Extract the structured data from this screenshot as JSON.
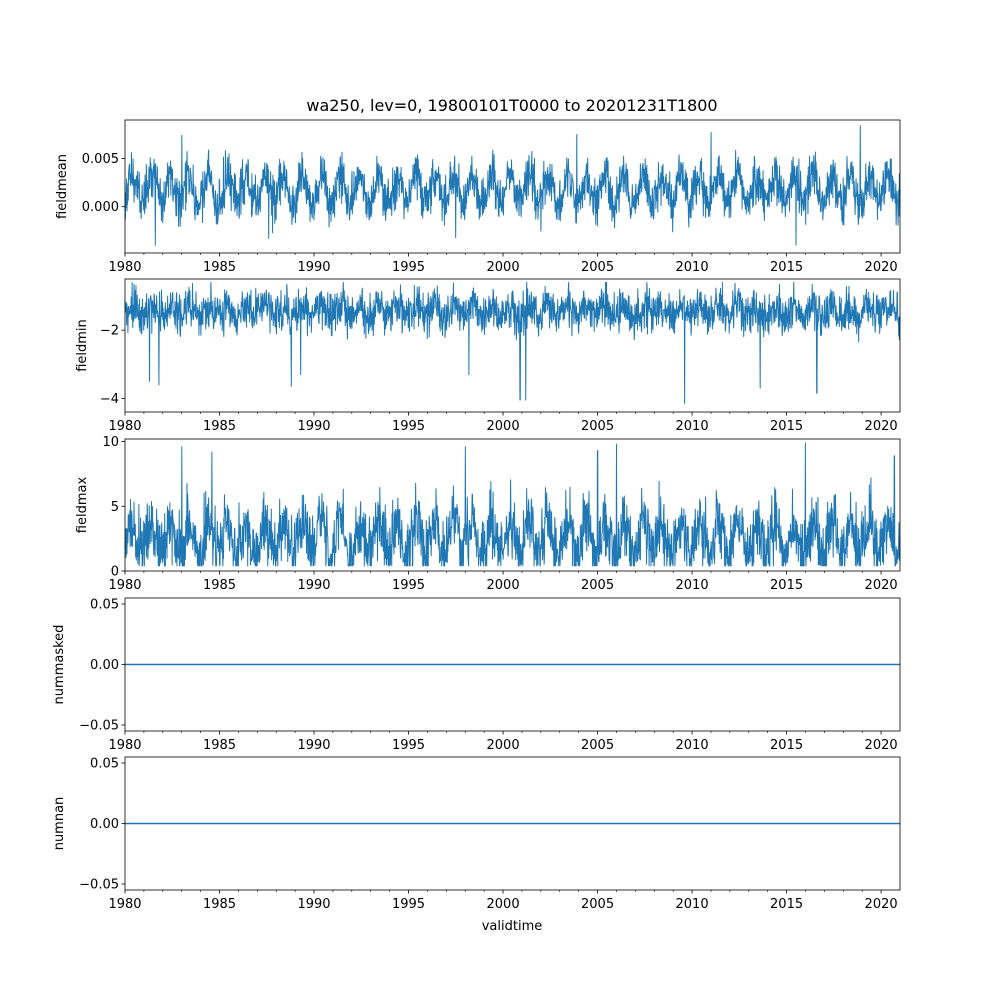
{
  "figure": {
    "title": "wa250, lev=0, 19800101T0000 to 20201231T1800",
    "xlabel": "validtime",
    "series_color": "#1f77b4"
  },
  "chart_data": [
    {
      "type": "line",
      "ylabel": "fieldmean",
      "x_range": [
        1980,
        2021
      ],
      "x_ticks": [
        1980,
        1985,
        1990,
        1995,
        2000,
        2005,
        2010,
        2015,
        2020
      ],
      "ylim": [
        -0.0048,
        0.009
      ],
      "y_ticks": [
        0.0,
        0.005
      ],
      "y_tick_labels": [
        "0.000",
        "0.005"
      ],
      "signal": {
        "mean": 0.0018,
        "seasonal_amplitude": 0.0015,
        "noise": 0.0012,
        "low": -0.004,
        "high": 0.0084
      },
      "extremes": [
        [
          1981.6,
          -0.004
        ],
        [
          1987.6,
          -0.0033
        ],
        [
          1997.5,
          -0.0032
        ],
        [
          2015.5,
          -0.0042
        ],
        [
          2018.9,
          0.0084
        ],
        [
          2003.9,
          0.0075
        ],
        [
          1983.0,
          0.0074
        ],
        [
          2011.0,
          0.0077
        ]
      ],
      "grid": false,
      "legend": "none"
    },
    {
      "type": "line",
      "ylabel": "fieldmin",
      "x_range": [
        1980,
        2021
      ],
      "x_ticks": [
        1980,
        1985,
        1990,
        1995,
        2000,
        2005,
        2010,
        2015,
        2020
      ],
      "ylim": [
        -4.4,
        -0.5
      ],
      "y_ticks": [
        -4,
        -2
      ],
      "y_tick_labels": [
        "−4",
        "−2"
      ],
      "signal": {
        "mean": -1.45,
        "seasonal_amplitude": 0.15,
        "noise": 0.3,
        "low": -4.15,
        "high": -0.6
      },
      "extremes": [
        [
          1981.3,
          -3.5
        ],
        [
          1981.8,
          -3.6
        ],
        [
          1988.8,
          -3.65
        ],
        [
          1989.3,
          -3.3
        ],
        [
          2000.9,
          -4.05
        ],
        [
          2001.2,
          -4.05
        ],
        [
          2009.6,
          -4.15
        ],
        [
          2016.6,
          -3.85
        ],
        [
          2013.6,
          -3.7
        ],
        [
          1998.2,
          -3.3
        ]
      ],
      "grid": false,
      "legend": "none"
    },
    {
      "type": "line",
      "ylabel": "fieldmax",
      "x_range": [
        1980,
        2021
      ],
      "x_ticks": [
        1980,
        1985,
        1990,
        1995,
        2000,
        2005,
        2010,
        2015,
        2020
      ],
      "ylim": [
        0.0,
        10.2
      ],
      "y_ticks": [
        0,
        5,
        10
      ],
      "y_tick_labels": [
        "0",
        "5",
        "10"
      ],
      "signal": {
        "mean": 2.6,
        "seasonal_amplitude": 1.2,
        "noise": 1.3,
        "low": 0.4,
        "high": 9.9
      },
      "extremes": [
        [
          1983.0,
          9.6
        ],
        [
          1984.6,
          9.2
        ],
        [
          1998.0,
          9.6
        ],
        [
          2006.0,
          9.8
        ],
        [
          2016.0,
          9.9
        ],
        [
          2005.0,
          9.3
        ],
        [
          2020.7,
          8.9
        ]
      ],
      "grid": false,
      "legend": "none"
    },
    {
      "type": "line",
      "ylabel": "nummasked",
      "x_range": [
        1980,
        2021
      ],
      "x_ticks": [
        1980,
        1985,
        1990,
        1995,
        2000,
        2005,
        2010,
        2015,
        2020
      ],
      "ylim": [
        -0.055,
        0.055
      ],
      "y_ticks": [
        -0.05,
        0.0,
        0.05
      ],
      "y_tick_labels": [
        "−0.05",
        "0.00",
        "0.05"
      ],
      "x": [
        1980,
        2021
      ],
      "values": [
        0,
        0
      ],
      "grid": false,
      "legend": "none"
    },
    {
      "type": "line",
      "ylabel": "numnan",
      "x_range": [
        1980,
        2021
      ],
      "x_ticks": [
        1980,
        1985,
        1990,
        1995,
        2000,
        2005,
        2010,
        2015,
        2020
      ],
      "ylim": [
        -0.055,
        0.055
      ],
      "y_ticks": [
        -0.05,
        0.0,
        0.05
      ],
      "y_tick_labels": [
        "−0.05",
        "0.00",
        "0.05"
      ],
      "x": [
        1980,
        2021
      ],
      "values": [
        0,
        0
      ],
      "grid": false,
      "legend": "none"
    }
  ]
}
